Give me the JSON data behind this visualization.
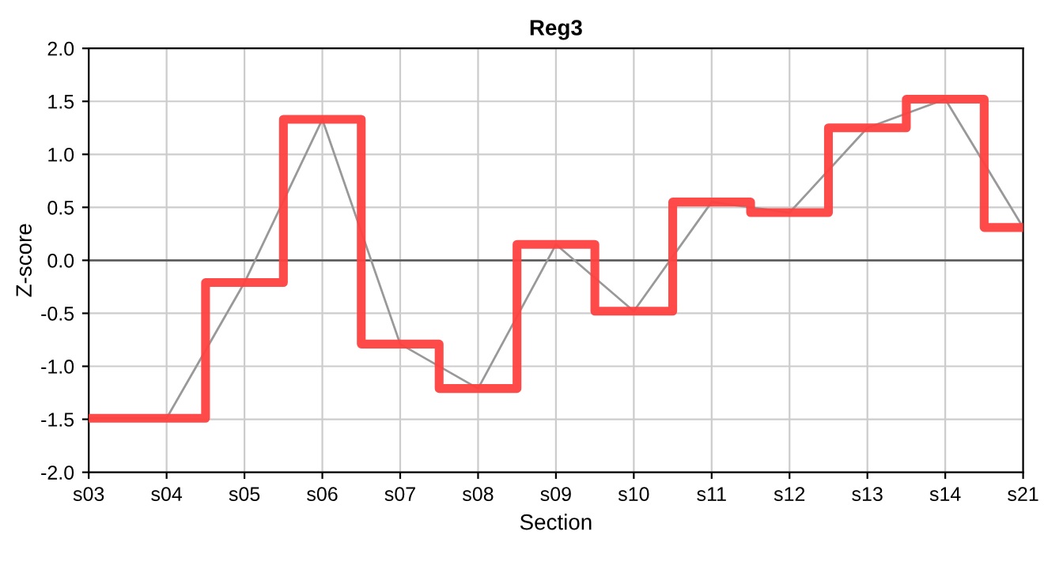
{
  "chart_data": {
    "type": "line",
    "title": "Reg3",
    "xlabel": "Section",
    "ylabel": "Z-score",
    "categories": [
      "s03",
      "s04",
      "s05",
      "s06",
      "s07",
      "s08",
      "s09",
      "s10",
      "s11",
      "s12",
      "s13",
      "s14",
      "s21"
    ],
    "series": [
      {
        "color": "#999999",
        "values": [
          -1.49,
          -1.49,
          -0.21,
          1.33,
          -0.79,
          -1.21,
          0.15,
          -0.48,
          0.55,
          0.45,
          1.25,
          1.52,
          0.31
        ]
      },
      {
        "type": "step",
        "color": "#ff4040",
        "values": [
          -1.49,
          -1.49,
          -0.21,
          1.33,
          -0.79,
          -1.21,
          0.15,
          -0.48,
          0.55,
          0.45,
          1.25,
          1.52,
          0.31
        ]
      }
    ],
    "ylim": [
      -2.0,
      2.0
    ],
    "yticks": [
      {
        "value": -2.0,
        "label": "-2.0"
      },
      {
        "value": -1.5,
        "label": "-1.5"
      },
      {
        "value": -1.0,
        "label": "-1.0"
      },
      {
        "value": -0.5,
        "label": "-0.5"
      },
      {
        "value": 0.0,
        "label": "0.0"
      },
      {
        "value": 0.5,
        "label": "0.5"
      },
      {
        "value": 1.0,
        "label": "1.0"
      },
      {
        "value": 1.5,
        "label": "1.5"
      },
      {
        "value": 2.0,
        "label": "2.0"
      }
    ],
    "ref_lines": [
      {
        "axis": "y",
        "value": 0,
        "color": "#555555"
      }
    ],
    "grid": true,
    "legend": false
  }
}
